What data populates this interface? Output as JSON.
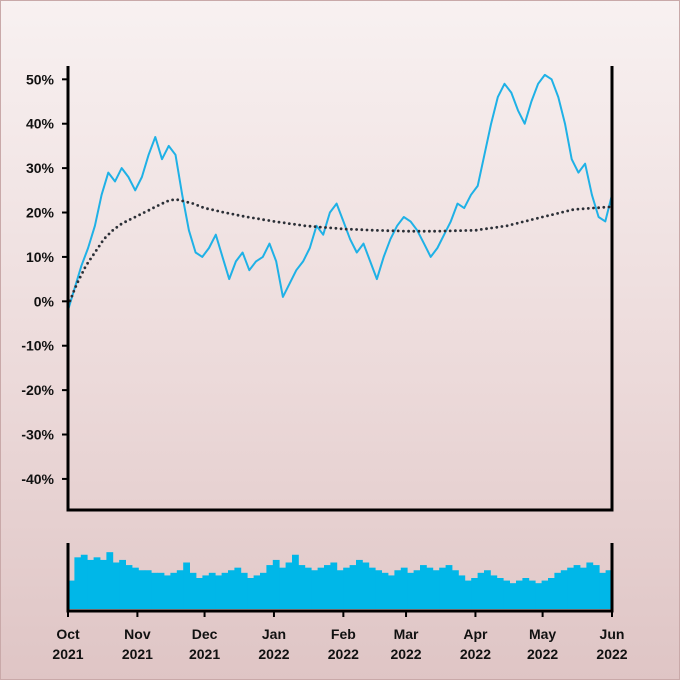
{
  "chart_data": [
    {
      "type": "line",
      "x_ticks": [
        "Oct 2021",
        "Nov 2021",
        "Dec 2021",
        "Jan 2022",
        "Feb 2022",
        "Mar 2022",
        "Apr 2022",
        "May 2022",
        "Jun 2022"
      ],
      "y_ticks": [
        "50%",
        "40%",
        "30%",
        "20%",
        "10%",
        "0%",
        "-10%",
        "-20%",
        "-30%",
        "-40%"
      ],
      "ylim": [
        -47,
        53
      ],
      "xlim": [
        "2021-10-01",
        "2022-06-01"
      ],
      "grid": false,
      "series": [
        {
          "color": "#1fb1e6",
          "style": "solid",
          "points": [
            [
              "2021-10-01",
              -2
            ],
            [
              "2021-10-04",
              3
            ],
            [
              "2021-10-07",
              8
            ],
            [
              "2021-10-10",
              12
            ],
            [
              "2021-10-13",
              17
            ],
            [
              "2021-10-16",
              24
            ],
            [
              "2021-10-19",
              29
            ],
            [
              "2021-10-22",
              27
            ],
            [
              "2021-10-25",
              30
            ],
            [
              "2021-10-28",
              28
            ],
            [
              "2021-10-31",
              25
            ],
            [
              "2021-11-03",
              28
            ],
            [
              "2021-11-06",
              33
            ],
            [
              "2021-11-09",
              37
            ],
            [
              "2021-11-12",
              32
            ],
            [
              "2021-11-15",
              35
            ],
            [
              "2021-11-18",
              33
            ],
            [
              "2021-11-21",
              24
            ],
            [
              "2021-11-24",
              16
            ],
            [
              "2021-11-27",
              11
            ],
            [
              "2021-11-30",
              10
            ],
            [
              "2021-12-03",
              12
            ],
            [
              "2021-12-06",
              15
            ],
            [
              "2021-12-09",
              10
            ],
            [
              "2021-12-12",
              5
            ],
            [
              "2021-12-15",
              9
            ],
            [
              "2021-12-18",
              11
            ],
            [
              "2021-12-21",
              7
            ],
            [
              "2021-12-24",
              9
            ],
            [
              "2021-12-27",
              10
            ],
            [
              "2021-12-30",
              13
            ],
            [
              "2022-01-02",
              9
            ],
            [
              "2022-01-05",
              1
            ],
            [
              "2022-01-08",
              4
            ],
            [
              "2022-01-11",
              7
            ],
            [
              "2022-01-14",
              9
            ],
            [
              "2022-01-17",
              12
            ],
            [
              "2022-01-20",
              17
            ],
            [
              "2022-01-23",
              15
            ],
            [
              "2022-01-26",
              20
            ],
            [
              "2022-01-29",
              22
            ],
            [
              "2022-02-01",
              18
            ],
            [
              "2022-02-04",
              14
            ],
            [
              "2022-02-07",
              11
            ],
            [
              "2022-02-10",
              13
            ],
            [
              "2022-02-13",
              9
            ],
            [
              "2022-02-16",
              5
            ],
            [
              "2022-02-19",
              10
            ],
            [
              "2022-02-22",
              14
            ],
            [
              "2022-02-25",
              17
            ],
            [
              "2022-02-28",
              19
            ],
            [
              "2022-03-03",
              18
            ],
            [
              "2022-03-06",
              16
            ],
            [
              "2022-03-09",
              13
            ],
            [
              "2022-03-12",
              10
            ],
            [
              "2022-03-15",
              12
            ],
            [
              "2022-03-18",
              15
            ],
            [
              "2022-03-21",
              18
            ],
            [
              "2022-03-24",
              22
            ],
            [
              "2022-03-27",
              21
            ],
            [
              "2022-03-30",
              24
            ],
            [
              "2022-04-02",
              26
            ],
            [
              "2022-04-05",
              33
            ],
            [
              "2022-04-08",
              40
            ],
            [
              "2022-04-11",
              46
            ],
            [
              "2022-04-14",
              49
            ],
            [
              "2022-04-17",
              47
            ],
            [
              "2022-04-20",
              43
            ],
            [
              "2022-04-23",
              40
            ],
            [
              "2022-04-26",
              45
            ],
            [
              "2022-04-29",
              49
            ],
            [
              "2022-05-02",
              51
            ],
            [
              "2022-05-05",
              50
            ],
            [
              "2022-05-08",
              46
            ],
            [
              "2022-05-11",
              40
            ],
            [
              "2022-05-14",
              32
            ],
            [
              "2022-05-17",
              29
            ],
            [
              "2022-05-20",
              31
            ],
            [
              "2022-05-23",
              24
            ],
            [
              "2022-05-26",
              19
            ],
            [
              "2022-05-29",
              18
            ],
            [
              "2022-06-01",
              24
            ]
          ]
        },
        {
          "color": "#2b2f36",
          "style": "dotted",
          "points": [
            [
              "2021-10-01",
              -1
            ],
            [
              "2021-10-05",
              4
            ],
            [
              "2021-10-09",
              8
            ],
            [
              "2021-10-13",
              11
            ],
            [
              "2021-10-17",
              14
            ],
            [
              "2021-10-21",
              16
            ],
            [
              "2021-10-25",
              17.5
            ],
            [
              "2021-10-29",
              18.5
            ],
            [
              "2021-11-02",
              19.5
            ],
            [
              "2021-11-06",
              20.5
            ],
            [
              "2021-11-10",
              21.5
            ],
            [
              "2021-11-14",
              22.5
            ],
            [
              "2021-11-18",
              23
            ],
            [
              "2021-11-22",
              22.5
            ],
            [
              "2021-11-26",
              22
            ],
            [
              "2021-12-01",
              21
            ],
            [
              "2021-12-10",
              20
            ],
            [
              "2021-12-20",
              19
            ],
            [
              "2022-01-01",
              18
            ],
            [
              "2022-01-15",
              17
            ],
            [
              "2022-02-01",
              16.3
            ],
            [
              "2022-02-15",
              16
            ],
            [
              "2022-03-01",
              15.8
            ],
            [
              "2022-03-15",
              15.8
            ],
            [
              "2022-04-01",
              16
            ],
            [
              "2022-04-15",
              17
            ],
            [
              "2022-05-01",
              19
            ],
            [
              "2022-05-15",
              20.7
            ],
            [
              "2022-06-01",
              21.3
            ]
          ]
        }
      ]
    },
    {
      "type": "bar",
      "color": "#00b7e8",
      "xlim": [
        "2021-10-01",
        "2022-06-01"
      ],
      "values": [
        1.1,
        2.0,
        2.1,
        1.9,
        2.0,
        1.9,
        2.2,
        1.8,
        1.9,
        1.7,
        1.6,
        1.5,
        1.5,
        1.4,
        1.4,
        1.3,
        1.4,
        1.5,
        1.8,
        1.4,
        1.2,
        1.3,
        1.4,
        1.3,
        1.4,
        1.5,
        1.6,
        1.4,
        1.2,
        1.3,
        1.4,
        1.7,
        1.9,
        1.6,
        1.8,
        2.1,
        1.7,
        1.6,
        1.5,
        1.6,
        1.7,
        1.8,
        1.5,
        1.6,
        1.7,
        1.9,
        1.8,
        1.6,
        1.5,
        1.4,
        1.3,
        1.5,
        1.6,
        1.4,
        1.5,
        1.7,
        1.6,
        1.5,
        1.6,
        1.7,
        1.5,
        1.3,
        1.1,
        1.2,
        1.4,
        1.5,
        1.3,
        1.2,
        1.1,
        1.0,
        1.1,
        1.2,
        1.1,
        1.0,
        1.1,
        1.2,
        1.4,
        1.5,
        1.6,
        1.7,
        1.6,
        1.8,
        1.7,
        1.4,
        1.5
      ],
      "ylim": [
        0,
        2.4
      ]
    }
  ]
}
